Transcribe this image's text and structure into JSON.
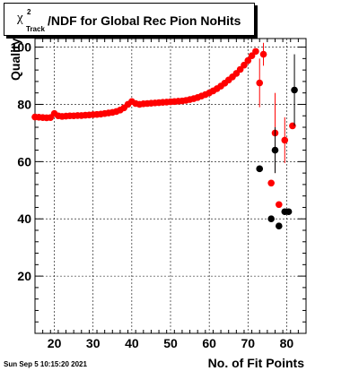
{
  "title": {
    "chi": "χ",
    "sup": "2",
    "sub": "Track",
    "main": "/NDF for Global Rec Pion NoHits"
  },
  "timestamp": "Sun Sep  5 10:15:20 2021",
  "chart_data": {
    "type": "scatter",
    "xlabel": "No. of Fit Points",
    "ylabel": "Quality",
    "xlim": [
      15,
      85
    ],
    "ylim": [
      0,
      103
    ],
    "x_ticks": [
      20,
      30,
      40,
      50,
      60,
      70,
      80
    ],
    "y_ticks": [
      20,
      40,
      60,
      80,
      100
    ],
    "grid": true,
    "series": [
      {
        "color": "#ff0000",
        "points": [
          {
            "x": 15,
            "y": 75.6
          },
          {
            "x": 16,
            "y": 75.5
          },
          {
            "x": 17,
            "y": 75.4
          },
          {
            "x": 18,
            "y": 75.3
          },
          {
            "x": 19,
            "y": 75.4
          },
          {
            "x": 20,
            "y": 76.8
          },
          {
            "x": 21,
            "y": 76.0
          },
          {
            "x": 22,
            "y": 75.8
          },
          {
            "x": 23,
            "y": 75.9
          },
          {
            "x": 24,
            "y": 76.0
          },
          {
            "x": 25,
            "y": 76.0
          },
          {
            "x": 26,
            "y": 76.1
          },
          {
            "x": 27,
            "y": 76.1
          },
          {
            "x": 28,
            "y": 76.2
          },
          {
            "x": 29,
            "y": 76.3
          },
          {
            "x": 30,
            "y": 76.4
          },
          {
            "x": 31,
            "y": 76.5
          },
          {
            "x": 32,
            "y": 76.6
          },
          {
            "x": 33,
            "y": 76.8
          },
          {
            "x": 34,
            "y": 77.0
          },
          {
            "x": 35,
            "y": 77.2
          },
          {
            "x": 36,
            "y": 77.5
          },
          {
            "x": 37,
            "y": 78.0
          },
          {
            "x": 38,
            "y": 78.8
          },
          {
            "x": 39,
            "y": 80.0
          },
          {
            "x": 40,
            "y": 81.0
          },
          {
            "x": 41,
            "y": 80.3
          },
          {
            "x": 42,
            "y": 80.0
          },
          {
            "x": 43,
            "y": 80.2
          },
          {
            "x": 44,
            "y": 80.3
          },
          {
            "x": 45,
            "y": 80.4
          },
          {
            "x": 46,
            "y": 80.5
          },
          {
            "x": 47,
            "y": 80.6
          },
          {
            "x": 48,
            "y": 80.7
          },
          {
            "x": 49,
            "y": 80.8
          },
          {
            "x": 50,
            "y": 80.9
          },
          {
            "x": 51,
            "y": 81.0
          },
          {
            "x": 52,
            "y": 81.1
          },
          {
            "x": 53,
            "y": 81.2
          },
          {
            "x": 54,
            "y": 81.4
          },
          {
            "x": 55,
            "y": 81.7
          },
          {
            "x": 56,
            "y": 82.0
          },
          {
            "x": 57,
            "y": 82.4
          },
          {
            "x": 58,
            "y": 82.9
          },
          {
            "x": 59,
            "y": 83.4
          },
          {
            "x": 60,
            "y": 84.0
          },
          {
            "x": 61,
            "y": 84.7
          },
          {
            "x": 62,
            "y": 85.5
          },
          {
            "x": 63,
            "y": 86.4
          },
          {
            "x": 64,
            "y": 87.4
          },
          {
            "x": 65,
            "y": 88.5
          },
          {
            "x": 66,
            "y": 89.6
          },
          {
            "x": 67,
            "y": 90.8
          },
          {
            "x": 68,
            "y": 92.2
          },
          {
            "x": 69,
            "y": 93.7
          },
          {
            "x": 70,
            "y": 95.3
          },
          {
            "x": 71,
            "y": 97.0
          },
          {
            "x": 72,
            "y": 98.5
          },
          {
            "x": 73,
            "y": 87.5,
            "err": 8.5
          },
          {
            "x": 74,
            "y": 97.5,
            "err": 4.0
          },
          {
            "x": 76,
            "y": 52.5,
            "err": 0
          },
          {
            "x": 77,
            "y": 70.0,
            "err": 14.0
          },
          {
            "x": 78,
            "y": 45.0,
            "err": 0
          },
          {
            "x": 79.5,
            "y": 67.5,
            "err": 8.0
          },
          {
            "x": 81.5,
            "y": 72.5,
            "err": 0
          }
        ]
      },
      {
        "color": "#000000",
        "points": [
          {
            "x": 73,
            "y": 57.5,
            "err": 0
          },
          {
            "x": 76,
            "y": 40.0,
            "err": 0
          },
          {
            "x": 77,
            "y": 64.0,
            "err": 8.0
          },
          {
            "x": 78,
            "y": 37.5,
            "err": 0
          },
          {
            "x": 79.5,
            "y": 42.5,
            "err": 0
          },
          {
            "x": 80.5,
            "y": 42.5,
            "err": 0
          },
          {
            "x": 82,
            "y": 85.0,
            "err": 12.5
          }
        ]
      }
    ]
  }
}
